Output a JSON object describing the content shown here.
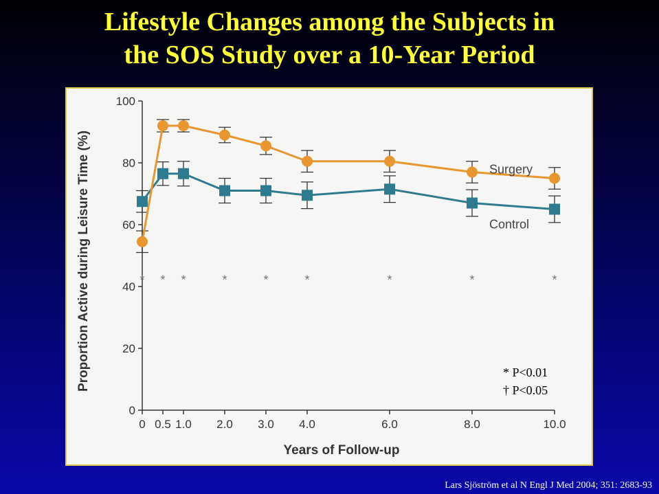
{
  "slide": {
    "title_line1": "Lifestyle Changes among the Subjects in",
    "title_line2": "the SOS Study over a 10-Year Period",
    "citation": "Lars Sjöström et al N Engl J Med 2004; 351: 2683-93",
    "footnote_p001": "* P<0.01",
    "footnote_p005": "† P<0.05"
  },
  "colors": {
    "surgery": "#e8962f",
    "control": "#2e7a8f",
    "title": "#ffff33"
  },
  "chart_data": {
    "type": "line",
    "xlabel": "Years of Follow-up",
    "ylabel": "Proportion Active during Leisure Time (%)",
    "ylim": [
      0,
      100
    ],
    "yticks": [
      0,
      20,
      40,
      60,
      80,
      100
    ],
    "xticks": [
      {
        "value": 0,
        "label": "0"
      },
      {
        "value": 0.5,
        "label": "0.5"
      },
      {
        "value": 1,
        "label": "1.0"
      },
      {
        "value": 2,
        "label": "2.0"
      },
      {
        "value": 3,
        "label": "3.0"
      },
      {
        "value": 4,
        "label": "4.0"
      },
      {
        "value": 6,
        "label": "6.0"
      },
      {
        "value": 8,
        "label": "8.0"
      },
      {
        "value": 10,
        "label": "10.0"
      }
    ],
    "x": [
      0,
      0.5,
      1,
      2,
      3,
      4,
      6,
      8,
      10
    ],
    "series": [
      {
        "name": "Surgery",
        "marker": "circle",
        "values": [
          54.5,
          92,
          92,
          89,
          85.5,
          80.5,
          80.5,
          77,
          75
        ],
        "err": [
          3.5,
          2,
          2,
          2.5,
          2.8,
          3.5,
          3.5,
          3.5,
          3.5
        ]
      },
      {
        "name": "Control",
        "marker": "square",
        "values": [
          67.5,
          76.5,
          76.5,
          71,
          71,
          69.5,
          71.5,
          67,
          65
        ],
        "err": [
          3.5,
          3.8,
          4,
          4,
          4,
          4.3,
          4.3,
          4.3,
          4.3
        ]
      }
    ],
    "significance_markers": [
      {
        "x": 0,
        "label": "*"
      },
      {
        "x": 0.5,
        "label": "*"
      },
      {
        "x": 1,
        "label": "*"
      },
      {
        "x": 2,
        "label": "*"
      },
      {
        "x": 3,
        "label": "*"
      },
      {
        "x": 4,
        "label": "*"
      },
      {
        "x": 6,
        "label": "*"
      },
      {
        "x": 8,
        "label": "*"
      },
      {
        "x": 10,
        "label": "*"
      }
    ],
    "significance_y": 43
  }
}
